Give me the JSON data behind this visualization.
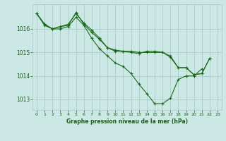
{
  "background_color": "#cce8e4",
  "grid_color": "#aacccc",
  "line_color": "#1a6b1a",
  "text_color": "#1a5c1a",
  "xlabel": "Graphe pression niveau de la mer (hPa)",
  "xlim": [
    -0.5,
    23.5
  ],
  "ylim": [
    1012.55,
    1017.05
  ],
  "yticks": [
    1013,
    1014,
    1015,
    1016
  ],
  "xticks": [
    0,
    1,
    2,
    3,
    4,
    5,
    6,
    7,
    8,
    9,
    10,
    11,
    12,
    13,
    14,
    15,
    16,
    17,
    18,
    19,
    20,
    21,
    22,
    23
  ],
  "s1_x": [
    0,
    1,
    2,
    3,
    4,
    5,
    6,
    7,
    8,
    9,
    10,
    11,
    12,
    13,
    14,
    15,
    16,
    17,
    18,
    19,
    20,
    21
  ],
  "s1_y": [
    1016.65,
    1016.15,
    1016.0,
    1016.0,
    1016.1,
    1016.5,
    1016.15,
    1015.6,
    1015.15,
    1014.85,
    1014.55,
    1014.4,
    1014.1,
    1013.65,
    1013.25,
    1012.82,
    1012.82,
    1013.05,
    1013.85,
    1014.0,
    1014.0,
    1014.3
  ],
  "s2_x": [
    0,
    1,
    2,
    3,
    4,
    5,
    6,
    7,
    8,
    9,
    10,
    11,
    12,
    13,
    14,
    15,
    16,
    17,
    18,
    19,
    20,
    21,
    22
  ],
  "s2_y": [
    1016.65,
    1016.2,
    1016.0,
    1016.1,
    1016.15,
    1016.7,
    1016.2,
    1015.85,
    1015.55,
    1015.2,
    1015.05,
    1015.05,
    1015.0,
    1014.95,
    1015.05,
    1015.05,
    1015.0,
    1014.8,
    1014.35,
    1014.35,
    1014.05,
    1014.1,
    1014.75
  ],
  "s3_x": [
    0,
    1,
    2,
    3,
    4,
    5,
    6,
    7,
    8,
    9,
    10,
    11,
    12,
    13,
    14,
    15,
    16,
    17,
    18,
    19,
    20,
    21,
    22
  ],
  "s3_y": [
    1016.65,
    1016.2,
    1016.0,
    1016.1,
    1016.2,
    1016.65,
    1016.25,
    1015.95,
    1015.6,
    1015.2,
    1015.1,
    1015.05,
    1015.05,
    1015.0,
    1015.0,
    1015.0,
    1015.0,
    1014.85,
    1014.35,
    1014.35,
    1014.05,
    1014.1,
    1014.75
  ],
  "marker": "+",
  "markersize": 3,
  "linewidth": 0.8
}
